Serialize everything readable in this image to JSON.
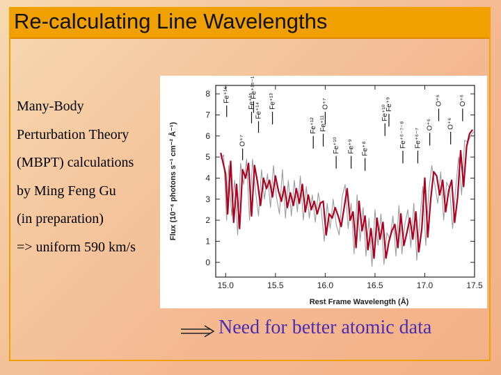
{
  "title": "Re-calculating Line Wavelengths",
  "body_lines": [
    "Many-Body",
    "Perturbation Theory",
    "(MBPT) calculations",
    "by Ming Feng Gu",
    "(in preparation)",
    "=> uniform 590 km/s"
  ],
  "note": "Need for better atomic data",
  "chart_data": {
    "type": "line",
    "xlabel": "Rest Frame Wavelength (Å)",
    "ylabel": "Flux (10⁻⁴ photons s⁻¹ cm⁻² Å⁻¹)",
    "xlim": [
      14.9,
      17.5
    ],
    "ylim": [
      -0.7,
      8.4
    ],
    "xticks": [
      "15.0",
      "15.5",
      "16.0",
      "16.5",
      "17.0",
      "17.5"
    ],
    "yticks": [
      "0",
      "1",
      "2",
      "3",
      "4",
      "5",
      "6",
      "7",
      "8"
    ],
    "grid": false,
    "series": [
      {
        "role": "model",
        "color": "#b00020",
        "x": [
          14.95,
          15.0,
          15.02,
          15.05,
          15.08,
          15.11,
          15.14,
          15.17,
          15.2,
          15.23,
          15.26,
          15.29,
          15.32,
          15.35,
          15.38,
          15.41,
          15.44,
          15.47,
          15.5,
          15.53,
          15.56,
          15.59,
          15.62,
          15.65,
          15.68,
          15.71,
          15.74,
          15.77,
          15.8,
          15.83,
          15.86,
          15.89,
          15.92,
          15.95,
          15.98,
          16.01,
          16.04,
          16.07,
          16.1,
          16.13,
          16.16,
          16.19,
          16.22,
          16.25,
          16.28,
          16.31,
          16.34,
          16.37,
          16.4,
          16.43,
          16.46,
          16.49,
          16.52,
          16.55,
          16.58,
          16.61,
          16.64,
          16.67,
          16.7,
          16.73,
          16.76,
          16.79,
          16.82,
          16.85,
          16.88,
          16.91,
          16.94,
          16.97,
          17.0,
          17.03,
          17.06,
          17.09,
          17.12,
          17.15,
          17.18,
          17.21,
          17.24,
          17.27,
          17.3,
          17.33,
          17.36,
          17.39,
          17.42,
          17.45,
          17.48
        ],
        "y": [
          5.2,
          4.2,
          2.3,
          4.8,
          1.9,
          3.7,
          1.6,
          4.4,
          4.0,
          4.7,
          2.2,
          4.6,
          3.8,
          2.7,
          4.0,
          3.5,
          3.9,
          3.1,
          4.1,
          3.4,
          2.9,
          3.6,
          2.6,
          3.3,
          2.7,
          3.5,
          2.8,
          3.7,
          2.4,
          3.2,
          2.5,
          2.9,
          2.3,
          2.8,
          2.9,
          1.3,
          2.3,
          2.1,
          2.6,
          2.2,
          1.7,
          2.6,
          3.5,
          2.0,
          2.4,
          0.7,
          2.9,
          1.5,
          2.2,
          0.6,
          1.6,
          0.2,
          2.1,
          1.1,
          1.9,
          0.2,
          1.0,
          1.5,
          1.8,
          0.7,
          2.3,
          0.8,
          1.4,
          2.1,
          1.1,
          2.4,
          0.5,
          1.6,
          4.0,
          1.2,
          3.0,
          4.3,
          4.1,
          3.2,
          3.9,
          2.4,
          3.4,
          3.9,
          1.9,
          3.1,
          5.3,
          3.6,
          5.5,
          6.1,
          6.3
        ]
      },
      {
        "role": "data",
        "color": "#8a8a8a",
        "x": [
          14.95,
          14.98,
          15.01,
          15.03,
          15.06,
          15.09,
          15.12,
          15.15,
          15.18,
          15.21,
          15.24,
          15.27,
          15.3,
          15.33,
          15.36,
          15.39,
          15.42,
          15.45,
          15.48,
          15.51,
          15.54,
          15.57,
          15.6,
          15.63,
          15.66,
          15.69,
          15.72,
          15.75,
          15.78,
          15.81,
          15.84,
          15.87,
          15.9,
          15.93,
          15.96,
          15.99,
          16.02,
          16.05,
          16.08,
          16.11,
          16.14,
          16.17,
          16.2,
          16.23,
          16.26,
          16.29,
          16.32,
          16.35,
          16.38,
          16.41,
          16.44,
          16.47,
          16.5,
          16.53,
          16.56,
          16.59,
          16.62,
          16.65,
          16.68,
          16.71,
          16.74,
          16.77,
          16.8,
          16.83,
          16.86,
          16.89,
          16.92,
          16.95,
          16.98,
          17.01,
          17.04,
          17.07,
          17.1,
          17.13,
          17.16,
          17.19,
          17.22,
          17.25,
          17.28,
          17.31,
          17.34,
          17.37,
          17.4,
          17.43,
          17.46,
          17.49
        ],
        "y": [
          4.9,
          5.1,
          2.0,
          4.6,
          2.2,
          3.9,
          1.3,
          4.7,
          3.7,
          4.9,
          2.0,
          4.9,
          3.4,
          2.2,
          4.4,
          3.0,
          4.2,
          2.6,
          4.6,
          3.1,
          2.3,
          4.4,
          2.1,
          3.9,
          2.2,
          3.9,
          2.4,
          4.1,
          2.0,
          3.6,
          2.1,
          3.2,
          1.9,
          3.3,
          2.5,
          1.0,
          2.8,
          1.6,
          3.0,
          1.8,
          1.3,
          3.1,
          3.7,
          1.6,
          2.8,
          0.4,
          3.2,
          1.0,
          2.6,
          0.3,
          2.1,
          -0.2,
          2.5,
          0.8,
          2.3,
          -0.1,
          1.4,
          1.1,
          2.2,
          0.3,
          2.7,
          0.4,
          1.8,
          2.5,
          0.7,
          2.8,
          0.1,
          2.0,
          3.6,
          0.8,
          3.4,
          4.6,
          3.7,
          2.8,
          4.3,
          2.0,
          3.8,
          3.5,
          1.6,
          3.5,
          5.0,
          3.2,
          5.8,
          5.7,
          6.0,
          6.2
        ]
      }
    ],
    "line_markers": [
      {
        "label": "Fe⁺¹⁶",
        "x": 15.01,
        "top": 7.45,
        "bottom": 6.9
      },
      {
        "label": "O⁺⁷",
        "x": 15.17,
        "top": 5.4,
        "bottom": 4.85
      },
      {
        "label": "Fe⁺¹⁵",
        "x": 15.26,
        "top": 7.15,
        "bottom": 6.6
      },
      {
        "label": "Fe⁺¹⁵⁻¹⁶",
        "x": 15.28,
        "top": 7.65,
        "bottom": 7.1
      },
      {
        "label": "Fe⁺¹⁴",
        "x": 15.33,
        "top": 6.7,
        "bottom": 6.15
      },
      {
        "label": "Fe⁺¹³",
        "x": 15.47,
        "top": 7.15,
        "bottom": 6.55
      },
      {
        "label": "Fe⁺¹²",
        "x": 15.88,
        "top": 6.0,
        "bottom": 5.4
      },
      {
        "label": "Fe⁺¹¹",
        "x": 15.98,
        "top": 6.1,
        "bottom": 5.5
      },
      {
        "label": "O⁺⁷",
        "x": 16.0,
        "top": 7.15,
        "bottom": 6.55
      },
      {
        "label": "Fe⁺¹⁰",
        "x": 16.11,
        "top": 5.05,
        "bottom": 4.45
      },
      {
        "label": "Fe⁺⁹",
        "x": 16.26,
        "top": 5.05,
        "bottom": 4.45
      },
      {
        "label": "Fe⁺⁸",
        "x": 16.4,
        "top": 4.95,
        "bottom": 4.35
      },
      {
        "label": "Fe⁺¹⁰",
        "x": 16.6,
        "top": 6.6,
        "bottom": 6.0
      },
      {
        "label": "Fe⁺⁹",
        "x": 16.64,
        "top": 7.05,
        "bottom": 6.45
      },
      {
        "label": "Fe⁺⁶⁻⁷⁻⁸",
        "x": 16.78,
        "top": 5.3,
        "bottom": 4.7
      },
      {
        "label": "Fe⁺⁶⁻⁷",
        "x": 16.93,
        "top": 5.3,
        "bottom": 4.7
      },
      {
        "label": "O⁺⁶",
        "x": 17.05,
        "top": 6.15,
        "bottom": 5.55
      },
      {
        "label": "O⁺⁶",
        "x": 17.14,
        "top": 7.3,
        "bottom": 6.7
      },
      {
        "label": "O⁺⁶",
        "x": 17.26,
        "top": 6.2,
        "bottom": 5.6
      },
      {
        "label": "O⁺⁶",
        "x": 17.38,
        "top": 7.3,
        "bottom": 6.7
      }
    ]
  }
}
